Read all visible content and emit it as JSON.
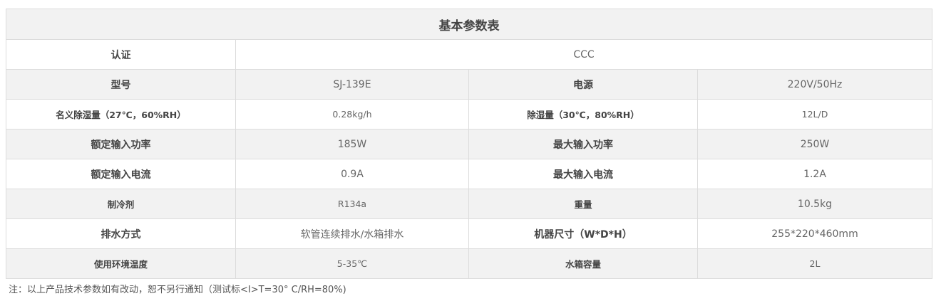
{
  "title": "基本参数表",
  "certification": {
    "label": "认证",
    "value": "CCC"
  },
  "rows": [
    {
      "l1": "型号",
      "v1": "SJ-139E",
      "l2": "电源",
      "v2": "220V/50Hz",
      "small": [
        false,
        false,
        false,
        false
      ]
    },
    {
      "l1": "名义除湿量（27℃，60%RH）",
      "v1": "0.28kg/h",
      "l2": "除湿量（30℃，80%RH）",
      "v2": "12L/D",
      "small": [
        true,
        true,
        true,
        true
      ]
    },
    {
      "l1": "额定输入功率",
      "v1": "185W",
      "l2": "最大输入功率",
      "v2": "250W",
      "small": [
        false,
        false,
        false,
        false
      ]
    },
    {
      "l1": "额定输入电流",
      "v1": "0.9A",
      "l2": "最大输入电流",
      "v2": "1.2A",
      "small": [
        false,
        false,
        false,
        false
      ]
    },
    {
      "l1": "制冷剂",
      "v1": "R134a",
      "l2": "重量",
      "v2": "10.5kg",
      "small": [
        true,
        true,
        true,
        false
      ]
    },
    {
      "l1": "排水方式",
      "v1": "软管连续排水/水箱排水",
      "l2": "机器尺寸（W*D*H）",
      "v2": "255*220*460mm",
      "small": [
        false,
        false,
        false,
        false
      ]
    },
    {
      "l1": "使用环境温度",
      "v1": "5-35℃",
      "l2": "水箱容量",
      "v2": "2L",
      "small": [
        true,
        true,
        true,
        true
      ]
    }
  ],
  "note": "注：以上产品技术参数如有改动，恕不另行通知（测试标<I>T=30° C/RH=80%)"
}
